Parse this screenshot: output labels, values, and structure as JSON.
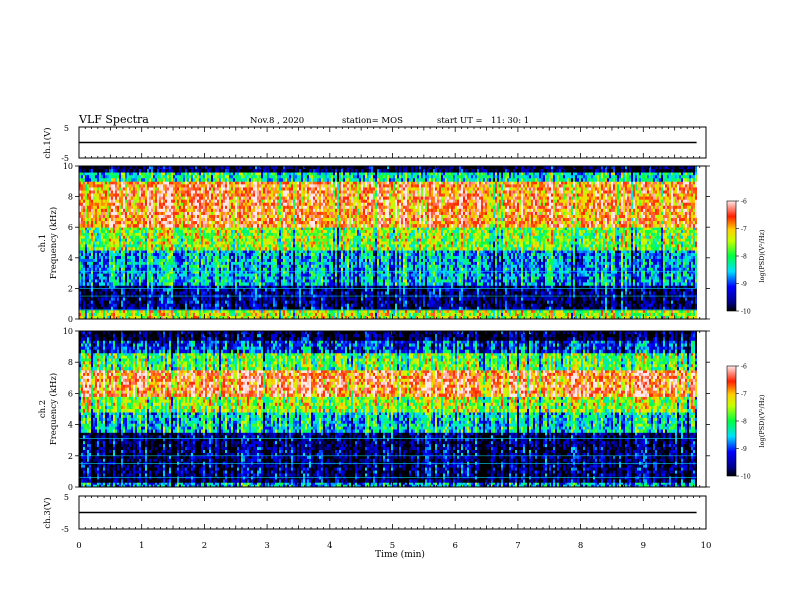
{
  "header": {
    "title": "VLF Spectra",
    "date": "Nov.8 , 2020",
    "station": "station= MOS",
    "start_label": "start UT =",
    "start_time": "11: 30: 1"
  },
  "chart_data": [
    {
      "type": "line",
      "panel": "ch1-voltage",
      "ylabel": "ch.1(V)",
      "ylim": [
        -5,
        5
      ],
      "yticks": [
        "5",
        "-5"
      ],
      "series": [
        {
          "x": [
            0,
            9.85
          ],
          "y": [
            0,
            0
          ]
        }
      ]
    },
    {
      "type": "heatmap",
      "panel": "ch1-spectrogram",
      "ylabel": "ch.1\nFrequency (kHz)",
      "ylabel_line1": "ch.1",
      "ylabel_line2": "Frequency (kHz)",
      "ylim": [
        0,
        10
      ],
      "yticks": [
        "0",
        "2",
        "4",
        "6",
        "8",
        "10"
      ],
      "colorbar": {
        "label": "log(PSD)(V²/Hz)",
        "ticks": [
          "-6",
          "-7",
          "-8",
          "-9",
          "-10"
        ],
        "range": [
          -10,
          -6
        ]
      },
      "bands": [
        {
          "from": 0,
          "to": 0.6,
          "level": 0.65
        },
        {
          "from": 0.6,
          "to": 2.2,
          "level": 0.1
        },
        {
          "from": 2.2,
          "to": 4.5,
          "level": 0.35
        },
        {
          "from": 4.5,
          "to": 6,
          "level": 0.6
        },
        {
          "from": 6,
          "to": 9,
          "level": 0.85
        },
        {
          "from": 9,
          "to": 9.6,
          "level": 0.45
        },
        {
          "from": 9.6,
          "to": 10,
          "level": 0.05
        }
      ]
    },
    {
      "type": "heatmap",
      "panel": "ch2-spectrogram",
      "ylabel": "ch.2\nFrequency (kHz)",
      "ylabel_line1": "ch.2",
      "ylabel_line2": "Frequency (kHz)",
      "ylim": [
        0,
        10
      ],
      "yticks": [
        "0",
        "2",
        "4",
        "6",
        "8",
        "10"
      ],
      "colorbar": {
        "label": "log(PSD)(V²/Hz)",
        "ticks": [
          "-6",
          "-7",
          "-8",
          "-9",
          "-10"
        ],
        "range": [
          -10,
          -6
        ]
      },
      "bands": [
        {
          "from": 0,
          "to": 0.3,
          "level": 0.35
        },
        {
          "from": 0.3,
          "to": 3.5,
          "level": 0.08
        },
        {
          "from": 3.5,
          "to": 4.8,
          "level": 0.4
        },
        {
          "from": 4.8,
          "to": 5.8,
          "level": 0.62
        },
        {
          "from": 5.8,
          "to": 7.5,
          "level": 0.88
        },
        {
          "from": 7.5,
          "to": 8.6,
          "level": 0.55
        },
        {
          "from": 8.6,
          "to": 9.4,
          "level": 0.25
        },
        {
          "from": 9.4,
          "to": 10,
          "level": 0.05
        }
      ]
    },
    {
      "type": "line",
      "panel": "ch3-voltage",
      "ylabel": "ch.3(V)",
      "ylim": [
        -5,
        5
      ],
      "yticks": [
        "5",
        "-5"
      ],
      "series": [
        {
          "x": [
            0,
            9.85
          ],
          "y": [
            0,
            0
          ]
        }
      ]
    }
  ],
  "x_axis": {
    "label": "Time (min)",
    "range": [
      0,
      10
    ],
    "ticks": [
      "0",
      "1",
      "2",
      "3",
      "4",
      "5",
      "6",
      "7",
      "8",
      "9",
      "10"
    ],
    "data_extent": [
      0,
      9.85
    ]
  },
  "colors": {
    "colormap": [
      "#000080",
      "#0000ff",
      "#00ffff",
      "#00ff00",
      "#ffff00",
      "#ff0000",
      "#ffc8c8"
    ]
  }
}
